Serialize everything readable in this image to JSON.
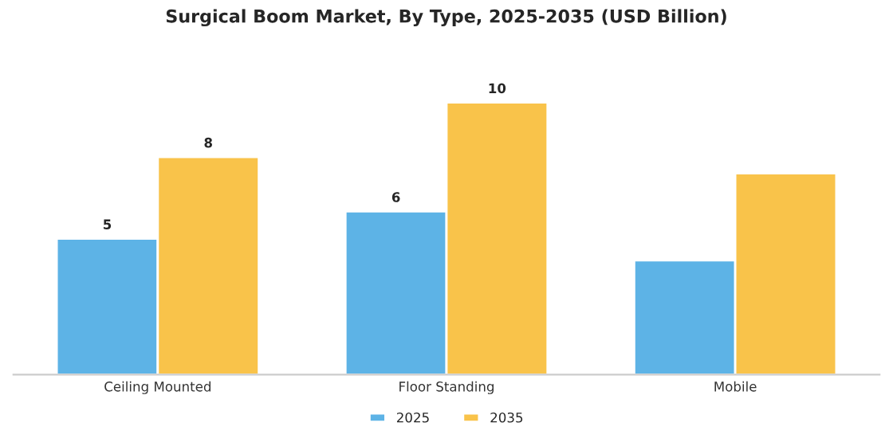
{
  "chart_data": {
    "type": "bar",
    "title": "Surgical Boom Market, By Type, 2025-2035 (USD Billion)",
    "categories": [
      "Ceiling Mounted",
      "Floor Standing",
      "Mobile"
    ],
    "series": [
      {
        "name": "2025",
        "color": "#5db3e6",
        "values": [
          5,
          6,
          4.2
        ],
        "value_labels": [
          "5",
          "6",
          null
        ]
      },
      {
        "name": "2035",
        "color": "#f9c34a",
        "values": [
          8,
          10,
          7.4
        ],
        "value_labels": [
          "8",
          "10",
          null
        ]
      }
    ],
    "legend": "bottom",
    "grid": false
  }
}
